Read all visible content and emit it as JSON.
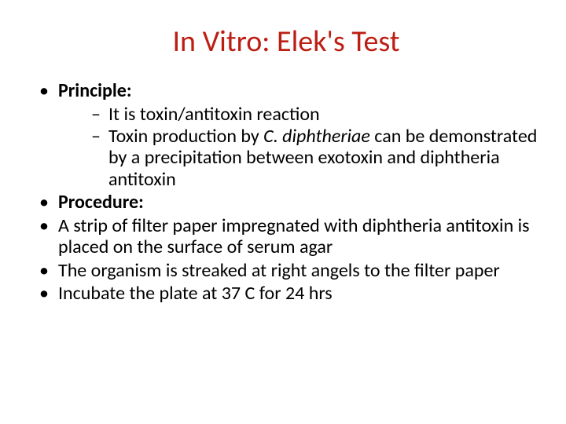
{
  "title": "In Vitro: Elek's Test",
  "colors": {
    "title": "#bd1e14",
    "body_text": "#000000",
    "background": "#ffffff"
  },
  "typography": {
    "title_fontsize": 38,
    "body_fontsize": 24,
    "font_family": "Calibri"
  },
  "content": {
    "b1_label": "Principle:",
    "b1_sub1": "It is toxin/antitoxin reaction",
    "b1_sub2_a": "Toxin production by ",
    "b1_sub2_ital": "C. diphtheriae",
    "b1_sub2_b": " can be demonstrated by a precipitation between exotoxin and diphtheria antitoxin",
    "b2_label": "Procedure:",
    "b3": "A strip of filter paper impregnated with diphtheria antitoxin is placed on the surface of serum agar",
    "b4": "The organism is streaked at right angels to the filter paper",
    "b5": "Incubate the plate at 37 C for 24 hrs"
  }
}
